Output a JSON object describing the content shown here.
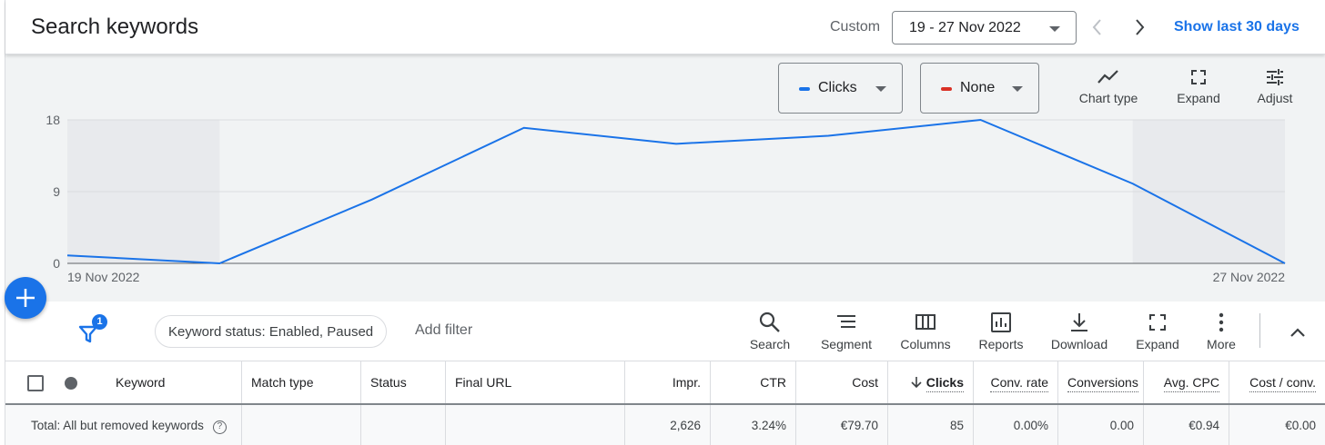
{
  "header": {
    "title": "Search keywords",
    "date_mode": "Custom",
    "date_range": "19 - 27 Nov 2022",
    "show_last": "Show last 30 days"
  },
  "chart_controls": {
    "metric1": {
      "label": "Clicks",
      "color": "#1a73e8"
    },
    "metric2": {
      "label": "None",
      "color": "#d93025"
    },
    "chart_type": "Chart type",
    "expand": "Expand",
    "adjust": "Adjust"
  },
  "chart_data": {
    "type": "line",
    "x": [
      "19 Nov 2022",
      "20 Nov 2022",
      "21 Nov 2022",
      "22 Nov 2022",
      "23 Nov 2022",
      "24 Nov 2022",
      "25 Nov 2022",
      "26 Nov 2022",
      "27 Nov 2022"
    ],
    "x_tick_labels": [
      "19 Nov 2022",
      "27 Nov 2022"
    ],
    "y_ticks": [
      "18",
      "9",
      "0"
    ],
    "ylim": [
      0,
      18
    ],
    "series": [
      {
        "name": "Clicks",
        "color": "#1a73e8",
        "values": [
          1,
          0,
          8,
          17,
          15,
          16,
          18,
          10,
          0
        ]
      }
    ],
    "weekend_shading": [
      [
        "19 Nov 2022",
        "20 Nov 2022"
      ],
      [
        "26 Nov 2022",
        "27 Nov 2022"
      ]
    ],
    "grid": true
  },
  "toolbar": {
    "filter_count": "1",
    "filter_chip": "Keyword status: Enabled, Paused",
    "add_filter": "Add filter",
    "tools": {
      "search": "Search",
      "segment": "Segment",
      "columns": "Columns",
      "reports": "Reports",
      "download": "Download",
      "expand": "Expand",
      "more": "More"
    }
  },
  "table": {
    "headers": {
      "keyword": "Keyword",
      "match_type": "Match type",
      "status": "Status",
      "final_url": "Final URL",
      "impr": "Impr.",
      "ctr": "CTR",
      "cost": "Cost",
      "clicks": "Clicks",
      "conv_rate": "Conv. rate",
      "conversions": "Conversions",
      "avg_cpc": "Avg. CPC",
      "cost_conv": "Cost / conv."
    },
    "total_row": {
      "label": "Total: All but removed keywords",
      "impr": "2,626",
      "ctr": "3.24%",
      "cost": "€79.70",
      "clicks": "85",
      "conv_rate": "0.00%",
      "conversions": "0.00",
      "avg_cpc": "€0.94",
      "cost_conv": "€0.00"
    }
  }
}
